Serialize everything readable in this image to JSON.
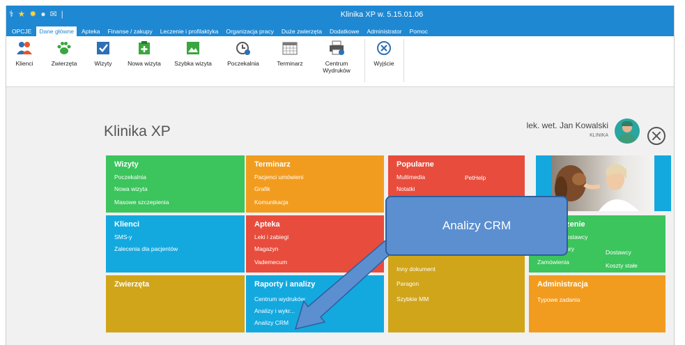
{
  "window": {
    "title": "Klinika XP w. 5.15.01.06"
  },
  "menu": [
    "OPCJE",
    "Dane główne",
    "Apteka",
    "Finanse / zakupy",
    "Leczenie i profilaktyka",
    "Organizacja pracy",
    "Duże zwierzęta",
    "Dodatkowe",
    "Administrator",
    "Pomoc"
  ],
  "active_menu": "Dane główne",
  "ribbon": [
    {
      "label": "Klienci",
      "icon": "clients-icon"
    },
    {
      "label": "Zwierzęta",
      "icon": "paw-icon"
    },
    {
      "label": "Wizyty",
      "icon": "checkbox-icon"
    },
    {
      "label": "Nowa wizyta",
      "icon": "new-visit-icon"
    },
    {
      "label": "Szybka wizyta",
      "icon": "quick-visit-icon"
    },
    {
      "label": "Poczekalnia",
      "icon": "clock-icon"
    },
    {
      "label": "Terminarz",
      "icon": "calendar-icon"
    },
    {
      "label": "Centrum",
      "label2": "Wydruków",
      "icon": "printer-icon"
    },
    {
      "label": "Wyjście",
      "icon": "exit-icon"
    }
  ],
  "brand": "Klinika XP",
  "user": {
    "name": "lek. wet. Jan Kowalski",
    "role": "KLINIKA"
  },
  "tiles": {
    "wizyty": {
      "title": "Wizyty",
      "links": [
        "Poczekalnia",
        "Nowa wizyta",
        "Masowe szczepienia"
      ]
    },
    "terminarz": {
      "title": "Terminarz",
      "links": [
        "Pacjenci umówieni",
        "Grafik",
        "Komunikacja"
      ]
    },
    "popularne": {
      "title": "Popularne",
      "links": [
        "Multimedia",
        "Notatki"
      ],
      "links_right": [
        "PetHelp"
      ]
    },
    "klienci": {
      "title": "Klienci",
      "links": [
        "SMS-y",
        "Zalecenia dla pacjentów"
      ]
    },
    "apteka": {
      "title": "Apteka",
      "links": [
        "Leki i zabiegi",
        "Magazyn",
        "Vademecum"
      ]
    },
    "dokumenty": {
      "links": [
        "Inny dokument",
        "Paragon",
        "Szybkie MM"
      ]
    },
    "zaopatrzenie": {
      "title": "...zenie",
      "links": [
        "...dostawcy",
        "...zury",
        "Zamówienia"
      ],
      "links_right": [
        "Dostawcy",
        "Koszty stałe"
      ]
    },
    "zwierzeta": {
      "title": "Zwierzęta"
    },
    "raporty": {
      "title": "Raporty i analizy",
      "links": [
        "Centrum wydruków",
        "Analizy i wykr...",
        "Analizy CRM"
      ]
    },
    "administracja": {
      "title": "Administracja",
      "links": [
        "Typowe zadania"
      ]
    }
  },
  "callout": "Analizy CRM"
}
